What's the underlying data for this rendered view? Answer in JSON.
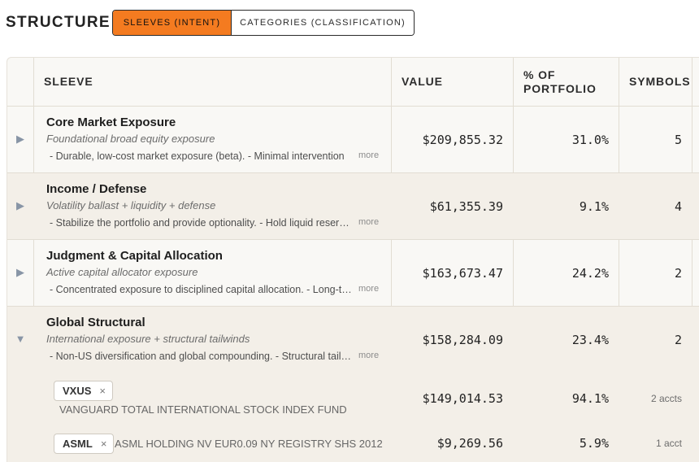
{
  "header": {
    "title": "STRUCTURE",
    "tabs": [
      {
        "label": "SLEEVES (INTENT)",
        "active": true
      },
      {
        "label": "CATEGORIES (CLASSIFICATION)",
        "active": false
      }
    ]
  },
  "colors": {
    "accent": "#f47b20",
    "row_alt": "#f3efe8",
    "table_bg": "#f9f8f5"
  },
  "table": {
    "columns": [
      "SLEEVE",
      "VALUE",
      "% OF PORTFOLIO",
      "SYMBOLS"
    ],
    "columns_display": {
      "sleeve": "SLEEVE",
      "value": "VALUE",
      "pct_line1": "% OF",
      "pct_line2": "PORTFOLIO",
      "symbols": "SYMBOLS"
    },
    "rows": [
      {
        "toggle": "▶",
        "name": "Core Market Exposure",
        "subtitle": "Foundational broad equity exposure",
        "description": "- Durable, low-cost market exposure (beta). - Minimal intervention",
        "more": "more",
        "value": "$209,855.32",
        "pct": "31.0%",
        "symbols": "5"
      },
      {
        "toggle": "▶",
        "name": "Income / Defense",
        "subtitle": "Volatility ballast + liquidity + defense",
        "description": "- Stabilize the portfolio and provide optionality. - Hold liquid reserves",
        "more": "more",
        "value": "$61,355.39",
        "pct": "9.1%",
        "symbols": "4"
      },
      {
        "toggle": "▶",
        "name": "Judgment & Capital Allocation",
        "subtitle": "Active capital allocator exposure",
        "description": "- Concentrated exposure to disciplined capital allocation. - Long-term",
        "more": "more",
        "value": "$163,673.47",
        "pct": "24.2%",
        "symbols": "2"
      },
      {
        "toggle": "▼",
        "name": "Global Structural",
        "subtitle": "International exposure + structural tailwinds",
        "description": "- Non-US diversification and global compounding. - Structural tailwinds",
        "more": "more",
        "value": "$158,284.09",
        "pct": "23.4%",
        "symbols": "2",
        "holdings": [
          {
            "symbol": "VXUS",
            "remove": "×",
            "fund": "VANGUARD TOTAL INTERNATIONAL STOCK INDEX FUND",
            "value": "$149,014.53",
            "pct": "94.1%",
            "accts": "2 accts"
          },
          {
            "symbol": "ASML",
            "remove": "×",
            "fund": "ASML HOLDING NV EUR0.09 NY REGISTRY SHS 2012",
            "value": "$9,269.56",
            "pct": "5.9%",
            "accts": "1 acct"
          }
        ]
      }
    ]
  }
}
